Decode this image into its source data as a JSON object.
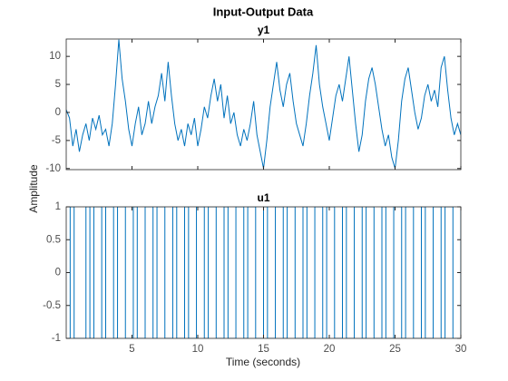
{
  "title": "Input-Output Data",
  "ylabel": "Amplitude",
  "xlabel": "Time (seconds)",
  "chart_data": [
    {
      "type": "line",
      "title": "y1",
      "color": "#0072BD",
      "x": [
        0,
        0.25,
        0.5,
        0.75,
        1,
        1.25,
        1.5,
        1.75,
        2,
        2.25,
        2.5,
        2.75,
        3,
        3.25,
        3.5,
        3.75,
        4,
        4.25,
        4.5,
        4.75,
        5,
        5.25,
        5.5,
        5.75,
        6,
        6.25,
        6.5,
        6.75,
        7,
        7.25,
        7.5,
        7.75,
        8,
        8.25,
        8.5,
        8.75,
        9,
        9.25,
        9.5,
        9.75,
        10,
        10.25,
        10.5,
        10.75,
        11,
        11.25,
        11.5,
        11.75,
        12,
        12.25,
        12.5,
        12.75,
        13,
        13.25,
        13.5,
        13.75,
        14,
        14.25,
        14.5,
        14.75,
        15,
        15.25,
        15.5,
        15.75,
        16,
        16.25,
        16.5,
        16.75,
        17,
        17.25,
        17.5,
        17.75,
        18,
        18.25,
        18.5,
        18.75,
        19,
        19.25,
        19.5,
        19.75,
        20,
        20.25,
        20.5,
        20.75,
        21,
        21.25,
        21.5,
        21.75,
        22,
        22.25,
        22.5,
        22.75,
        23,
        23.25,
        23.5,
        23.75,
        24,
        24.25,
        24.5,
        24.75,
        25,
        25.25,
        25.5,
        25.75,
        26,
        26.25,
        26.5,
        26.75,
        27,
        27.25,
        27.5,
        27.75,
        28,
        28.25,
        28.5,
        28.75,
        29,
        29.25,
        29.5,
        29.75,
        30
      ],
      "values": [
        0.5,
        -1,
        -6,
        -3,
        -7,
        -4,
        -2,
        -5,
        -1,
        -3,
        -0.5,
        -4,
        -3,
        -6,
        -2,
        5,
        13,
        6,
        2,
        -3,
        -6,
        -2,
        1,
        -4,
        -2,
        2,
        -2,
        1,
        3,
        7,
        2,
        9,
        3,
        -2,
        -5,
        -3,
        -6,
        -2,
        -4,
        -1,
        -6,
        -3,
        1,
        -1,
        3,
        6,
        2,
        5,
        -1,
        3,
        -2,
        0,
        -4,
        -6,
        -3,
        -5,
        -2,
        2,
        -4,
        -7,
        -10,
        -5,
        1,
        5,
        9,
        4,
        1,
        5,
        7,
        2,
        -2,
        -4,
        -6,
        -2,
        3,
        7,
        12,
        5,
        1,
        -2,
        -5,
        -1,
        3,
        5,
        2,
        6,
        10,
        4,
        -2,
        -7,
        -4,
        2,
        6,
        8,
        5,
        1,
        -3,
        -6,
        -4,
        -8,
        -10,
        -5,
        2,
        6,
        8,
        4,
        0,
        -3,
        -1,
        3,
        5,
        2,
        4,
        1,
        8,
        10,
        4,
        -1,
        -4,
        -2,
        -4
      ],
      "xlim": [
        0,
        30
      ],
      "ylim": [
        -10.2,
        13.1
      ],
      "yticks": [
        -10,
        -5,
        0,
        5,
        10
      ],
      "xticks": [
        5,
        10,
        15,
        20,
        25,
        30
      ],
      "show_xtick_labels": false
    },
    {
      "type": "stairs",
      "title": "u1",
      "color": "#0072BD",
      "x": [
        0,
        0.3,
        0.6,
        1.5,
        1.8,
        2.1,
        2.7,
        3.0,
        3.6,
        3.9,
        4.5,
        5.1,
        5.4,
        6.0,
        6.6,
        6.9,
        7.5,
        8.1,
        8.4,
        9.0,
        9.3,
        9.9,
        10.5,
        10.8,
        11.4,
        12.0,
        12.3,
        12.9,
        13.5,
        13.8,
        14.4,
        15.0,
        15.3,
        15.9,
        16.5,
        16.8,
        17.4,
        18.0,
        18.3,
        18.9,
        19.5,
        19.8,
        20.4,
        21.0,
        21.3,
        21.9,
        22.5,
        22.8,
        23.4,
        24.0,
        24.3,
        24.9,
        25.5,
        25.8,
        26.4,
        27.0,
        27.3,
        27.9,
        28.5,
        28.8,
        29.4,
        30
      ],
      "values": [
        -1,
        1,
        -1,
        1,
        -1,
        1,
        -1,
        1,
        -1,
        1,
        -1,
        1,
        -1,
        1,
        -1,
        1,
        -1,
        1,
        -1,
        1,
        -1,
        1,
        -1,
        1,
        -1,
        1,
        -1,
        1,
        -1,
        1,
        -1,
        1,
        -1,
        1,
        -1,
        1,
        -1,
        1,
        -1,
        1,
        -1,
        1,
        -1,
        1,
        -1,
        1,
        -1,
        1,
        -1,
        1,
        -1,
        1,
        -1,
        1,
        -1,
        1,
        -1,
        1,
        -1,
        1,
        -1,
        1
      ],
      "xlim": [
        0,
        30
      ],
      "ylim": [
        -1,
        1
      ],
      "yticks": [
        -1,
        -0.5,
        0,
        0.5,
        1
      ],
      "xticks": [
        5,
        10,
        15,
        20,
        25,
        30
      ],
      "show_xtick_labels": true
    }
  ]
}
